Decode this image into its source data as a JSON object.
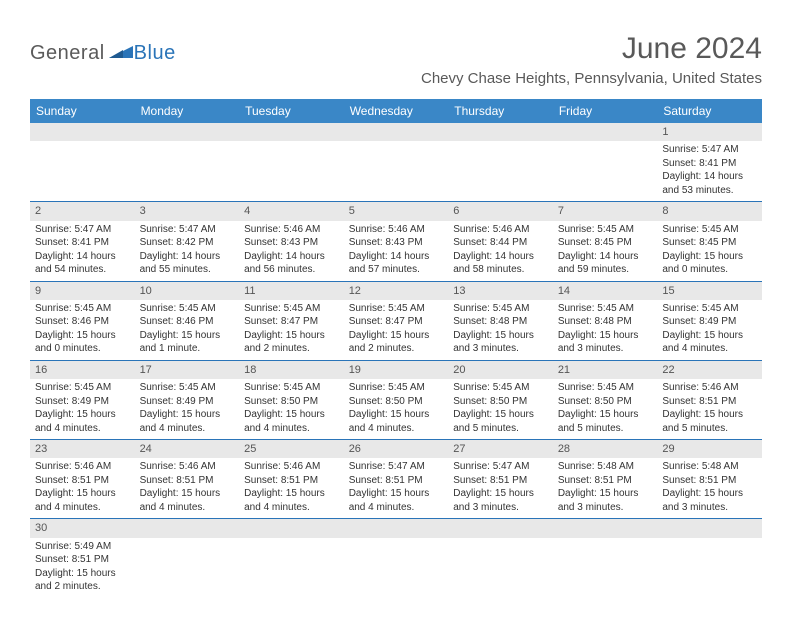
{
  "logo": {
    "part1": "General",
    "part2": "Blue"
  },
  "title": "June 2024",
  "location": "Chevy Chase Heights, Pennsylvania, United States",
  "colors": {
    "header_bg": "#3a87c7",
    "header_text": "#ffffff",
    "daynum_bg": "#e8e8e8",
    "text": "#333333",
    "border": "#2a74b8",
    "title_color": "#595959",
    "logo_gray": "#5a5a5a",
    "logo_blue": "#2a74b8"
  },
  "typography": {
    "title_fontsize": 30,
    "location_fontsize": 15,
    "dayheader_fontsize": 12,
    "daynum_fontsize": 11,
    "body_fontsize": 10
  },
  "day_headers": [
    "Sunday",
    "Monday",
    "Tuesday",
    "Wednesday",
    "Thursday",
    "Friday",
    "Saturday"
  ],
  "weeks": [
    [
      {
        "n": "",
        "sr": "",
        "ss": "",
        "dl": ""
      },
      {
        "n": "",
        "sr": "",
        "ss": "",
        "dl": ""
      },
      {
        "n": "",
        "sr": "",
        "ss": "",
        "dl": ""
      },
      {
        "n": "",
        "sr": "",
        "ss": "",
        "dl": ""
      },
      {
        "n": "",
        "sr": "",
        "ss": "",
        "dl": ""
      },
      {
        "n": "",
        "sr": "",
        "ss": "",
        "dl": ""
      },
      {
        "n": "1",
        "sr": "Sunrise: 5:47 AM",
        "ss": "Sunset: 8:41 PM",
        "dl": "Daylight: 14 hours and 53 minutes."
      }
    ],
    [
      {
        "n": "2",
        "sr": "Sunrise: 5:47 AM",
        "ss": "Sunset: 8:41 PM",
        "dl": "Daylight: 14 hours and 54 minutes."
      },
      {
        "n": "3",
        "sr": "Sunrise: 5:47 AM",
        "ss": "Sunset: 8:42 PM",
        "dl": "Daylight: 14 hours and 55 minutes."
      },
      {
        "n": "4",
        "sr": "Sunrise: 5:46 AM",
        "ss": "Sunset: 8:43 PM",
        "dl": "Daylight: 14 hours and 56 minutes."
      },
      {
        "n": "5",
        "sr": "Sunrise: 5:46 AM",
        "ss": "Sunset: 8:43 PM",
        "dl": "Daylight: 14 hours and 57 minutes."
      },
      {
        "n": "6",
        "sr": "Sunrise: 5:46 AM",
        "ss": "Sunset: 8:44 PM",
        "dl": "Daylight: 14 hours and 58 minutes."
      },
      {
        "n": "7",
        "sr": "Sunrise: 5:45 AM",
        "ss": "Sunset: 8:45 PM",
        "dl": "Daylight: 14 hours and 59 minutes."
      },
      {
        "n": "8",
        "sr": "Sunrise: 5:45 AM",
        "ss": "Sunset: 8:45 PM",
        "dl": "Daylight: 15 hours and 0 minutes."
      }
    ],
    [
      {
        "n": "9",
        "sr": "Sunrise: 5:45 AM",
        "ss": "Sunset: 8:46 PM",
        "dl": "Daylight: 15 hours and 0 minutes."
      },
      {
        "n": "10",
        "sr": "Sunrise: 5:45 AM",
        "ss": "Sunset: 8:46 PM",
        "dl": "Daylight: 15 hours and 1 minute."
      },
      {
        "n": "11",
        "sr": "Sunrise: 5:45 AM",
        "ss": "Sunset: 8:47 PM",
        "dl": "Daylight: 15 hours and 2 minutes."
      },
      {
        "n": "12",
        "sr": "Sunrise: 5:45 AM",
        "ss": "Sunset: 8:47 PM",
        "dl": "Daylight: 15 hours and 2 minutes."
      },
      {
        "n": "13",
        "sr": "Sunrise: 5:45 AM",
        "ss": "Sunset: 8:48 PM",
        "dl": "Daylight: 15 hours and 3 minutes."
      },
      {
        "n": "14",
        "sr": "Sunrise: 5:45 AM",
        "ss": "Sunset: 8:48 PM",
        "dl": "Daylight: 15 hours and 3 minutes."
      },
      {
        "n": "15",
        "sr": "Sunrise: 5:45 AM",
        "ss": "Sunset: 8:49 PM",
        "dl": "Daylight: 15 hours and 4 minutes."
      }
    ],
    [
      {
        "n": "16",
        "sr": "Sunrise: 5:45 AM",
        "ss": "Sunset: 8:49 PM",
        "dl": "Daylight: 15 hours and 4 minutes."
      },
      {
        "n": "17",
        "sr": "Sunrise: 5:45 AM",
        "ss": "Sunset: 8:49 PM",
        "dl": "Daylight: 15 hours and 4 minutes."
      },
      {
        "n": "18",
        "sr": "Sunrise: 5:45 AM",
        "ss": "Sunset: 8:50 PM",
        "dl": "Daylight: 15 hours and 4 minutes."
      },
      {
        "n": "19",
        "sr": "Sunrise: 5:45 AM",
        "ss": "Sunset: 8:50 PM",
        "dl": "Daylight: 15 hours and 4 minutes."
      },
      {
        "n": "20",
        "sr": "Sunrise: 5:45 AM",
        "ss": "Sunset: 8:50 PM",
        "dl": "Daylight: 15 hours and 5 minutes."
      },
      {
        "n": "21",
        "sr": "Sunrise: 5:45 AM",
        "ss": "Sunset: 8:50 PM",
        "dl": "Daylight: 15 hours and 5 minutes."
      },
      {
        "n": "22",
        "sr": "Sunrise: 5:46 AM",
        "ss": "Sunset: 8:51 PM",
        "dl": "Daylight: 15 hours and 5 minutes."
      }
    ],
    [
      {
        "n": "23",
        "sr": "Sunrise: 5:46 AM",
        "ss": "Sunset: 8:51 PM",
        "dl": "Daylight: 15 hours and 4 minutes."
      },
      {
        "n": "24",
        "sr": "Sunrise: 5:46 AM",
        "ss": "Sunset: 8:51 PM",
        "dl": "Daylight: 15 hours and 4 minutes."
      },
      {
        "n": "25",
        "sr": "Sunrise: 5:46 AM",
        "ss": "Sunset: 8:51 PM",
        "dl": "Daylight: 15 hours and 4 minutes."
      },
      {
        "n": "26",
        "sr": "Sunrise: 5:47 AM",
        "ss": "Sunset: 8:51 PM",
        "dl": "Daylight: 15 hours and 4 minutes."
      },
      {
        "n": "27",
        "sr": "Sunrise: 5:47 AM",
        "ss": "Sunset: 8:51 PM",
        "dl": "Daylight: 15 hours and 3 minutes."
      },
      {
        "n": "28",
        "sr": "Sunrise: 5:48 AM",
        "ss": "Sunset: 8:51 PM",
        "dl": "Daylight: 15 hours and 3 minutes."
      },
      {
        "n": "29",
        "sr": "Sunrise: 5:48 AM",
        "ss": "Sunset: 8:51 PM",
        "dl": "Daylight: 15 hours and 3 minutes."
      }
    ],
    [
      {
        "n": "30",
        "sr": "Sunrise: 5:49 AM",
        "ss": "Sunset: 8:51 PM",
        "dl": "Daylight: 15 hours and 2 minutes."
      },
      {
        "n": "",
        "sr": "",
        "ss": "",
        "dl": ""
      },
      {
        "n": "",
        "sr": "",
        "ss": "",
        "dl": ""
      },
      {
        "n": "",
        "sr": "",
        "ss": "",
        "dl": ""
      },
      {
        "n": "",
        "sr": "",
        "ss": "",
        "dl": ""
      },
      {
        "n": "",
        "sr": "",
        "ss": "",
        "dl": ""
      },
      {
        "n": "",
        "sr": "",
        "ss": "",
        "dl": ""
      }
    ]
  ]
}
